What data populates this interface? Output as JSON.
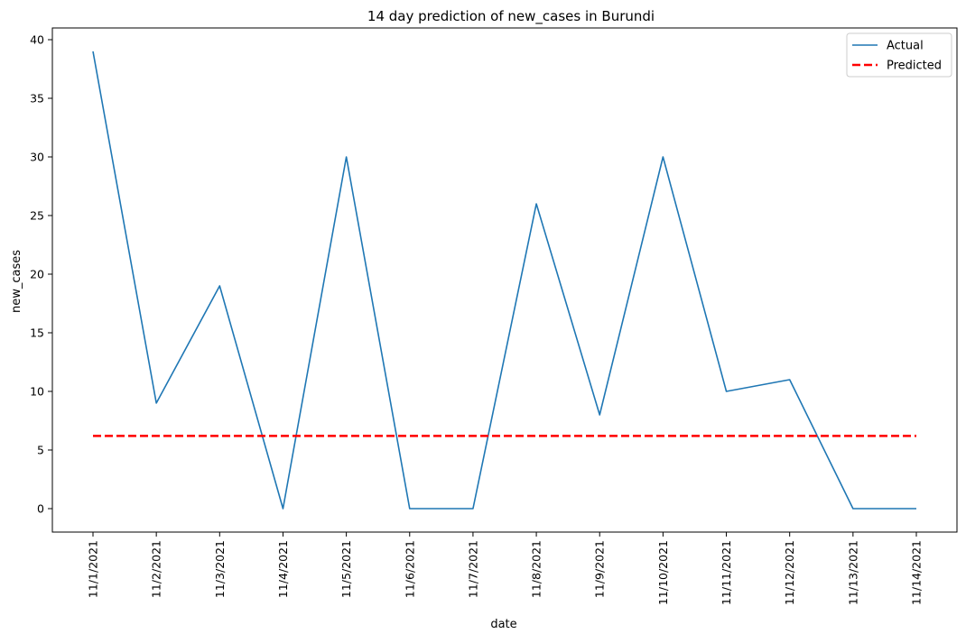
{
  "chart_data": {
    "type": "line",
    "title": "14 day prediction of new_cases in Burundi",
    "xlabel": "date",
    "ylabel": "new_cases",
    "categories": [
      "11/1/2021",
      "11/2/2021",
      "11/3/2021",
      "11/4/2021",
      "11/5/2021",
      "11/6/2021",
      "11/7/2021",
      "11/8/2021",
      "11/9/2021",
      "11/10/2021",
      "11/11/2021",
      "11/12/2021",
      "11/13/2021",
      "11/14/2021"
    ],
    "ylim": [
      -2,
      41
    ],
    "yticks": [
      0,
      5,
      10,
      15,
      20,
      25,
      30,
      35,
      40
    ],
    "grid": false,
    "legend_position": "top-right",
    "series": [
      {
        "name": "Actual",
        "color": "#1f77b4",
        "style": "solid",
        "values": [
          39,
          9,
          19,
          0,
          30,
          0,
          0,
          26,
          8,
          30,
          10,
          11,
          0,
          0
        ]
      },
      {
        "name": "Predicted",
        "color": "#ff0000",
        "style": "dashed",
        "values": [
          6.2,
          6.2,
          6.2,
          6.2,
          6.2,
          6.2,
          6.2,
          6.2,
          6.2,
          6.2,
          6.2,
          6.2,
          6.2,
          6.2
        ]
      }
    ]
  }
}
